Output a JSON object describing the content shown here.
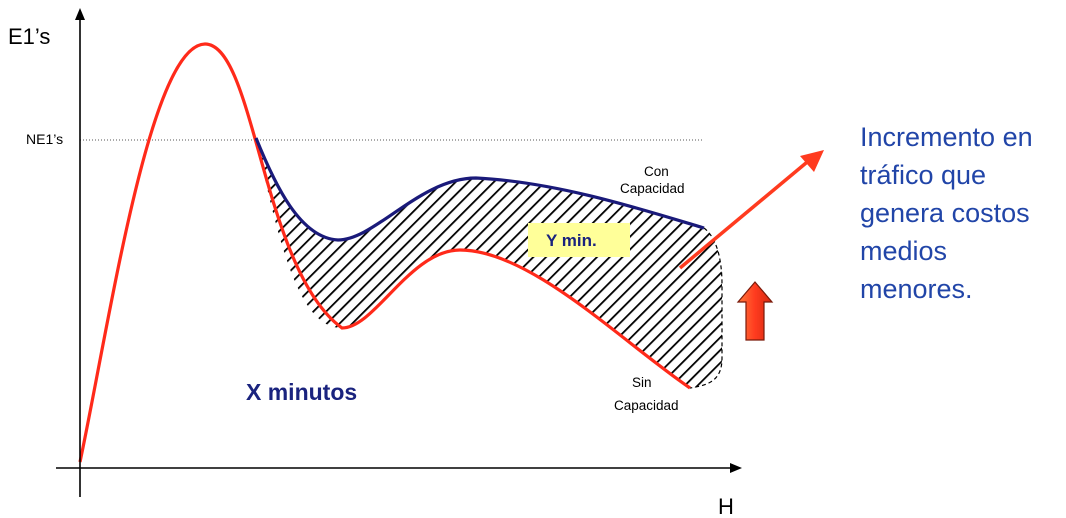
{
  "axes": {
    "y_label": "E1’s",
    "x_label": "H",
    "threshold_label": "NE1’s"
  },
  "curves": {
    "upper": {
      "label_line1": "Con",
      "label_line2": "Capacidad",
      "color": "#1a1a7a"
    },
    "lower": {
      "label_line1": "Sin",
      "label_line2": "Capacidad",
      "color": "#ff2a1a"
    }
  },
  "annotations": {
    "x_minutes": "X minutos",
    "y_minutes": "Y min."
  },
  "note_lines": [
    "Incremento en",
    "tráfico que",
    "genera costos",
    "medios",
    "menores."
  ],
  "colors": {
    "accent_blue": "#2145a8",
    "label_box": "#ffff99",
    "arrow_red": "#ff3b1f"
  }
}
